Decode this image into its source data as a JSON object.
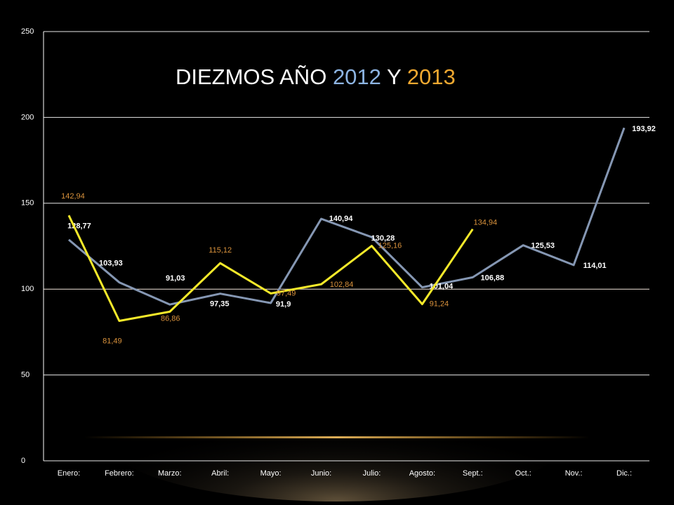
{
  "chart_data": {
    "type": "line",
    "title": [
      "DIEZMOS AÑO",
      "2012",
      "Y",
      "2013"
    ],
    "title_colors": [
      "#ffffff",
      "#8db4e2",
      "#ffffff",
      "#f0a830"
    ],
    "categories": [
      "Enero:",
      "Febrero:",
      "Marzo:",
      "Abril:",
      "Mayo:",
      "Junio:",
      "Julio:",
      "Agosto:",
      "Sept.:",
      "Oct.:",
      "Nov.:",
      "Dic.:"
    ],
    "series": [
      {
        "color": "#8597b3",
        "label_color": "#ffffff",
        "values": [
          128.77,
          103.93,
          91.03,
          97.35,
          91.9,
          140.94,
          130.28,
          101.04,
          106.88,
          125.53,
          114.01,
          193.92
        ],
        "value_labels": [
          "128,77",
          "103,93",
          "91,03",
          "97,35",
          "91,9",
          "140,94",
          "130,28",
          "101,04",
          "106,88",
          "125,53",
          "114,01",
          "193,92"
        ]
      },
      {
        "color": "#f5e92a",
        "label_color": "#d9923c",
        "values": [
          142.94,
          81.49,
          86.86,
          115.12,
          97.49,
          102.84,
          125.16,
          91.24,
          134.94,
          null,
          null,
          null
        ],
        "value_labels": [
          "142,94",
          "81,49",
          "86,86",
          "115,12",
          "97,49",
          "102,84",
          "125,16",
          "91,24",
          "134,94",
          null,
          null,
          null
        ]
      }
    ],
    "ylim": [
      0,
      250
    ],
    "yticks": [
      0,
      50,
      100,
      150,
      200,
      250
    ],
    "grid": true
  }
}
